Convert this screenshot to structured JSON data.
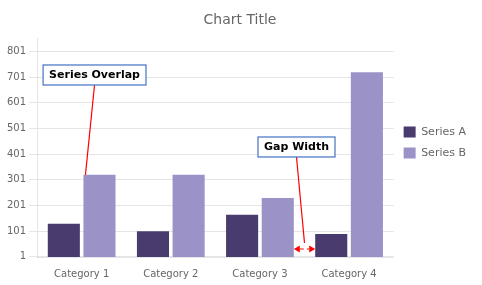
{
  "chart_data": {
    "type": "bar",
    "title": "Chart Title",
    "categories": [
      "Category 1",
      "Category 2",
      "Category 3",
      "Category 4"
    ],
    "series": [
      {
        "name": "Series A",
        "color": "#4a3b6e",
        "values": [
          130,
          100,
          165,
          90
        ]
      },
      {
        "name": "Series B",
        "color": "#9b92c8",
        "values": [
          320,
          320,
          230,
          720
        ]
      }
    ],
    "ylim": [
      0,
      850
    ],
    "yticks": [
      1,
      101,
      201,
      301,
      401,
      501,
      601,
      701,
      801
    ],
    "grid": true,
    "legend": "right",
    "annotations": [
      "Series Overlap",
      "Gap Width"
    ]
  }
}
